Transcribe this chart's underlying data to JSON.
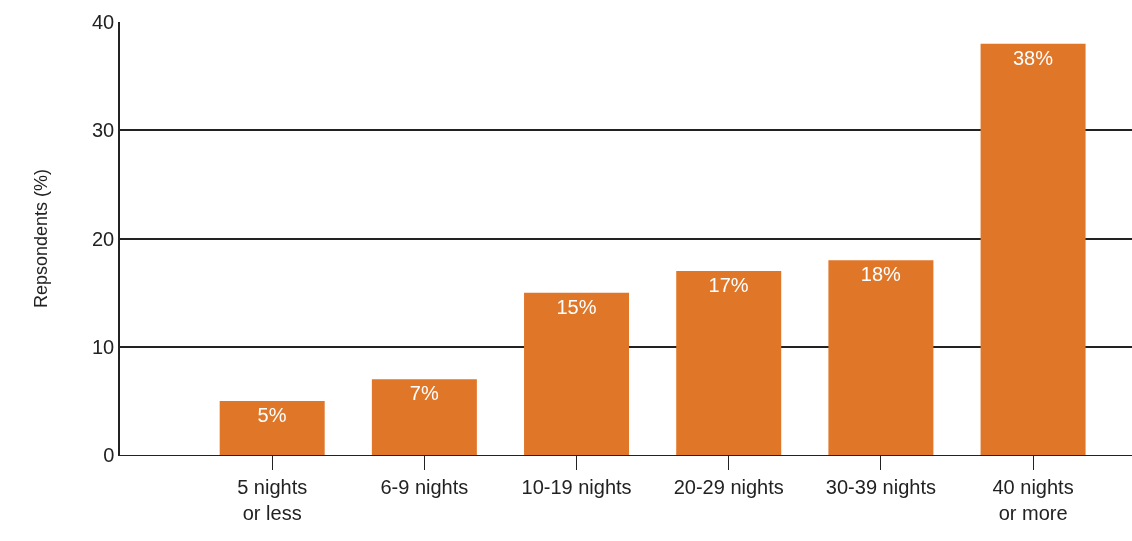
{
  "chart_data": {
    "type": "bar",
    "ylabel": "Repsondents (%)",
    "categories": [
      "5 nights\nor less",
      "6-9 nights",
      "10-19 nights",
      "20-29 nights",
      "30-39 nights",
      "40 nights\nor more"
    ],
    "values": [
      5,
      7,
      15,
      17,
      18,
      38
    ],
    "value_labels": [
      "5%",
      "7%",
      "15%",
      "17%",
      "18%",
      "38%"
    ],
    "color": "#e07628",
    "ylim": [
      0,
      40
    ],
    "yticks": [
      0,
      10,
      20,
      30,
      40
    ],
    "grid": "y"
  }
}
